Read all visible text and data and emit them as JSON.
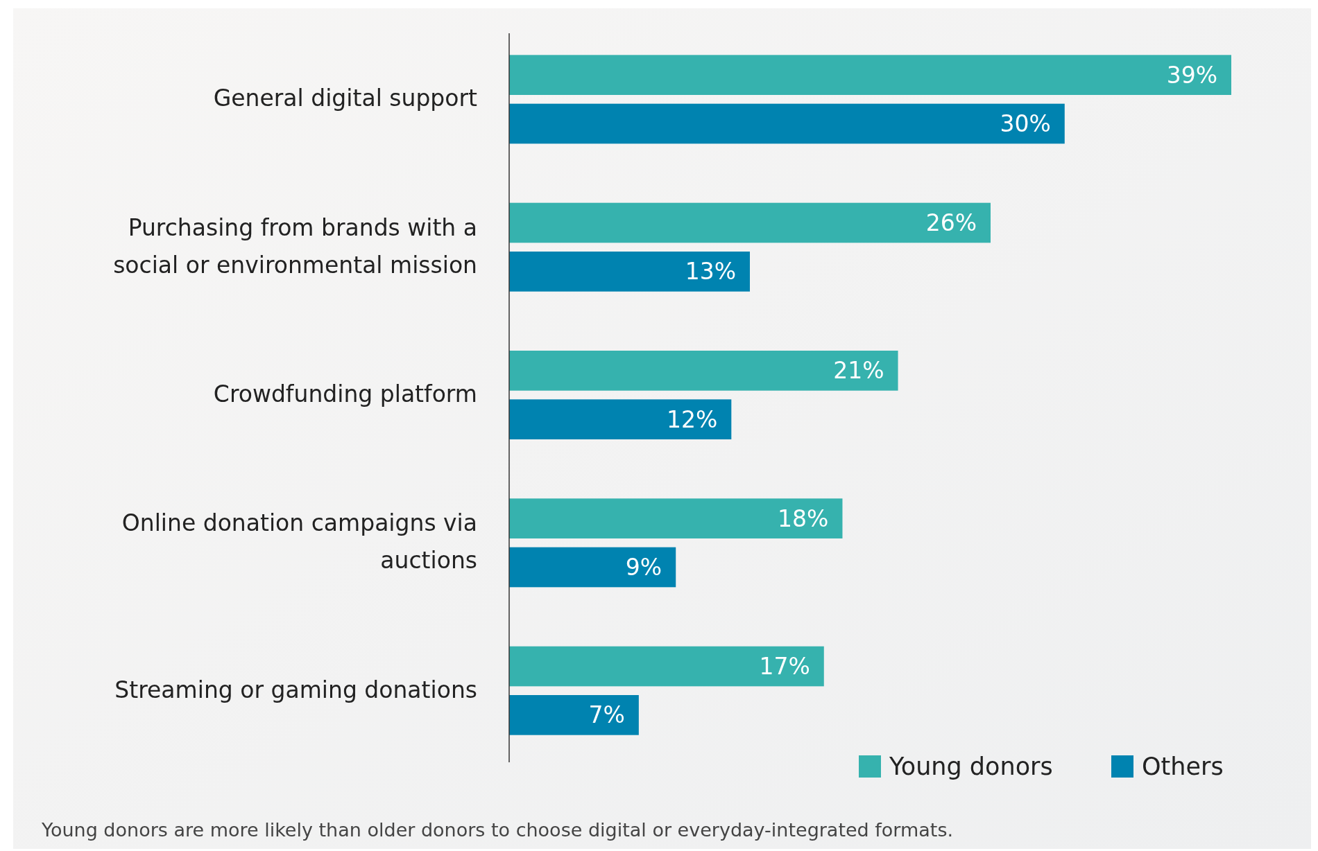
{
  "chart_data": {
    "type": "bar",
    "orientation": "horizontal",
    "legend": "bottom right",
    "categories": [
      "General digital support",
      "Purchasing from brands with a social or environmental mission",
      "Crowdfunding platform",
      "Online donation campaigns via auctions",
      "Streaming or gaming donations"
    ],
    "series": [
      {
        "name": "Young donors",
        "color": "#36b2ae",
        "values": [
          39,
          26,
          21,
          18,
          17
        ],
        "value_labels": [
          "39%",
          "26%",
          "21%",
          "18%",
          "17%"
        ]
      },
      {
        "name": "Others",
        "color": "#0083b0",
        "values": [
          30,
          13,
          12,
          9,
          7
        ],
        "value_labels": [
          "30%",
          "13%",
          "12%",
          "9%",
          "7%"
        ]
      }
    ],
    "annotations": [
      "Young donors are more likely than older donors to choose digital or everyday-integrated formats."
    ]
  }
}
